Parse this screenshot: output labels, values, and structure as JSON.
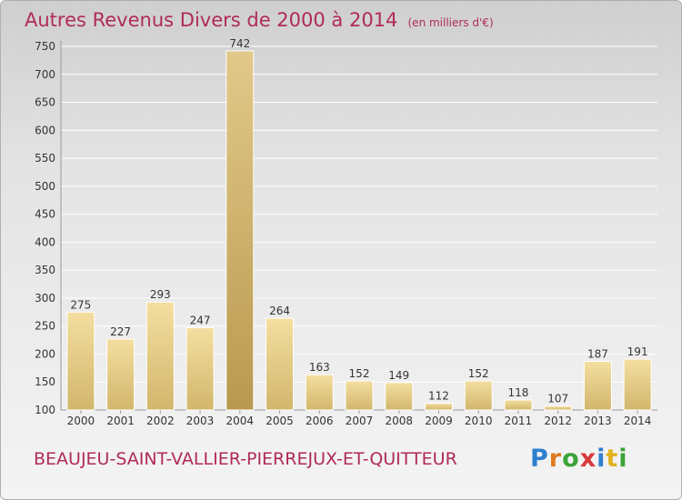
{
  "chart_data": {
    "type": "bar",
    "title": "Autres Revenus Divers de 2000 à 2014",
    "unit": "(en milliers d'€)",
    "categories": [
      "2000",
      "2001",
      "2002",
      "2003",
      "2004",
      "2005",
      "2006",
      "2007",
      "2008",
      "2009",
      "2010",
      "2011",
      "2012",
      "2013",
      "2014"
    ],
    "values": [
      275,
      227,
      293,
      247,
      742,
      264,
      163,
      152,
      149,
      112,
      152,
      118,
      107,
      187,
      191
    ],
    "ylim": [
      100,
      750
    ],
    "yticks": [
      100,
      150,
      200,
      250,
      300,
      350,
      400,
      450,
      500,
      550,
      600,
      650,
      700,
      750
    ],
    "grid": true,
    "bar_color": "#e8cf87",
    "highlight_color": "#c9a85c"
  },
  "footer": {
    "commune": "BEAUJEU-SAINT-VALLIER-PIERREJUX-ET-QUITTEUR",
    "logo": "Proxiti"
  }
}
